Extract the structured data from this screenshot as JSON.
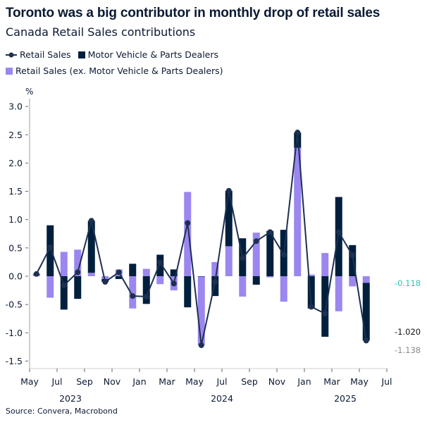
{
  "title": "Toronto was a big contributor in monthly drop of retail sales",
  "subtitle": "Canada Retail Sales contributions",
  "source": "Source: Convera, Macrobond",
  "colors": {
    "total": "#1d3050",
    "motor": "#001f3d",
    "ex_motor": "#9b87ef",
    "label_ex_motor": "#2ec7b4",
    "label_motor": "#111111",
    "label_total": "#888888"
  },
  "legend": [
    {
      "label": "Retail Sales",
      "icon": "line-dot-icon"
    },
    {
      "label": "Motor Vehicle & Parts Dealers",
      "icon": "square-icon"
    },
    {
      "label": "Retail Sales (ex. Motor Vehicle & Parts Dealers)",
      "icon": "square-icon"
    }
  ],
  "chart_data": {
    "type": "bar",
    "stacked": true,
    "ylabel": "%",
    "ylim": [
      -1.6,
      3.1
    ],
    "yticks": [
      "3.0",
      "2.5",
      "2.0",
      "1.5",
      "1.0",
      "0.5",
      "0.0",
      "-0.5",
      "-1.0",
      "-1.5"
    ],
    "xtick_labels": [
      "May",
      "Jul",
      "Sep",
      "Nov",
      "Jan",
      "Mar",
      "May",
      "Jul",
      "Sep",
      "Nov",
      "Jan",
      "Mar",
      "May",
      "Jul"
    ],
    "year_labels": [
      "2023",
      "2024",
      "2025"
    ],
    "categories": [
      "2023-05",
      "2023-06",
      "2023-07",
      "2023-08",
      "2023-09",
      "2023-10",
      "2023-11",
      "2023-12",
      "2024-01",
      "2024-02",
      "2024-03",
      "2024-04",
      "2024-05",
      "2024-06",
      "2024-07",
      "2024-08",
      "2024-09",
      "2024-10",
      "2024-11",
      "2024-12",
      "2025-01",
      "2025-02",
      "2025-03",
      "2025-04",
      "2025-05"
    ],
    "series": [
      {
        "name": "Retail Sales",
        "type": "line",
        "values": [
          0.04,
          0.51,
          -0.16,
          0.07,
          0.98,
          -0.1,
          0.07,
          -0.35,
          -0.36,
          0.24,
          -0.13,
          0.94,
          -1.22,
          -0.1,
          1.51,
          0.32,
          0.62,
          0.78,
          0.38,
          2.54,
          -0.54,
          -0.66,
          0.78,
          0.37,
          -1.138
        ]
      },
      {
        "name": "Motor Vehicle & Parts Dealers",
        "type": "bar",
        "values": [
          0.01,
          0.9,
          -0.59,
          -0.4,
          0.92,
          -0.05,
          -0.05,
          0.22,
          -0.49,
          0.38,
          0.12,
          -0.55,
          0.0,
          -0.35,
          0.98,
          0.67,
          -0.15,
          0.8,
          0.82,
          0.27,
          -0.57,
          -1.07,
          1.4,
          0.55,
          -1.02
        ]
      },
      {
        "name": "Retail Sales (ex. Motor Vehicle & Parts Dealers)",
        "type": "bar",
        "values": [
          0.03,
          -0.38,
          0.43,
          0.47,
          0.06,
          -0.05,
          0.12,
          -0.57,
          0.13,
          -0.14,
          -0.25,
          1.49,
          -1.22,
          0.25,
          0.53,
          -0.36,
          0.77,
          -0.02,
          -0.45,
          2.27,
          0.03,
          0.41,
          -0.62,
          -0.18,
          -0.118
        ]
      }
    ],
    "end_labels": [
      "-0.118",
      "-1.020",
      "-1.138"
    ],
    "legend_position": "top-left",
    "grid": false
  }
}
